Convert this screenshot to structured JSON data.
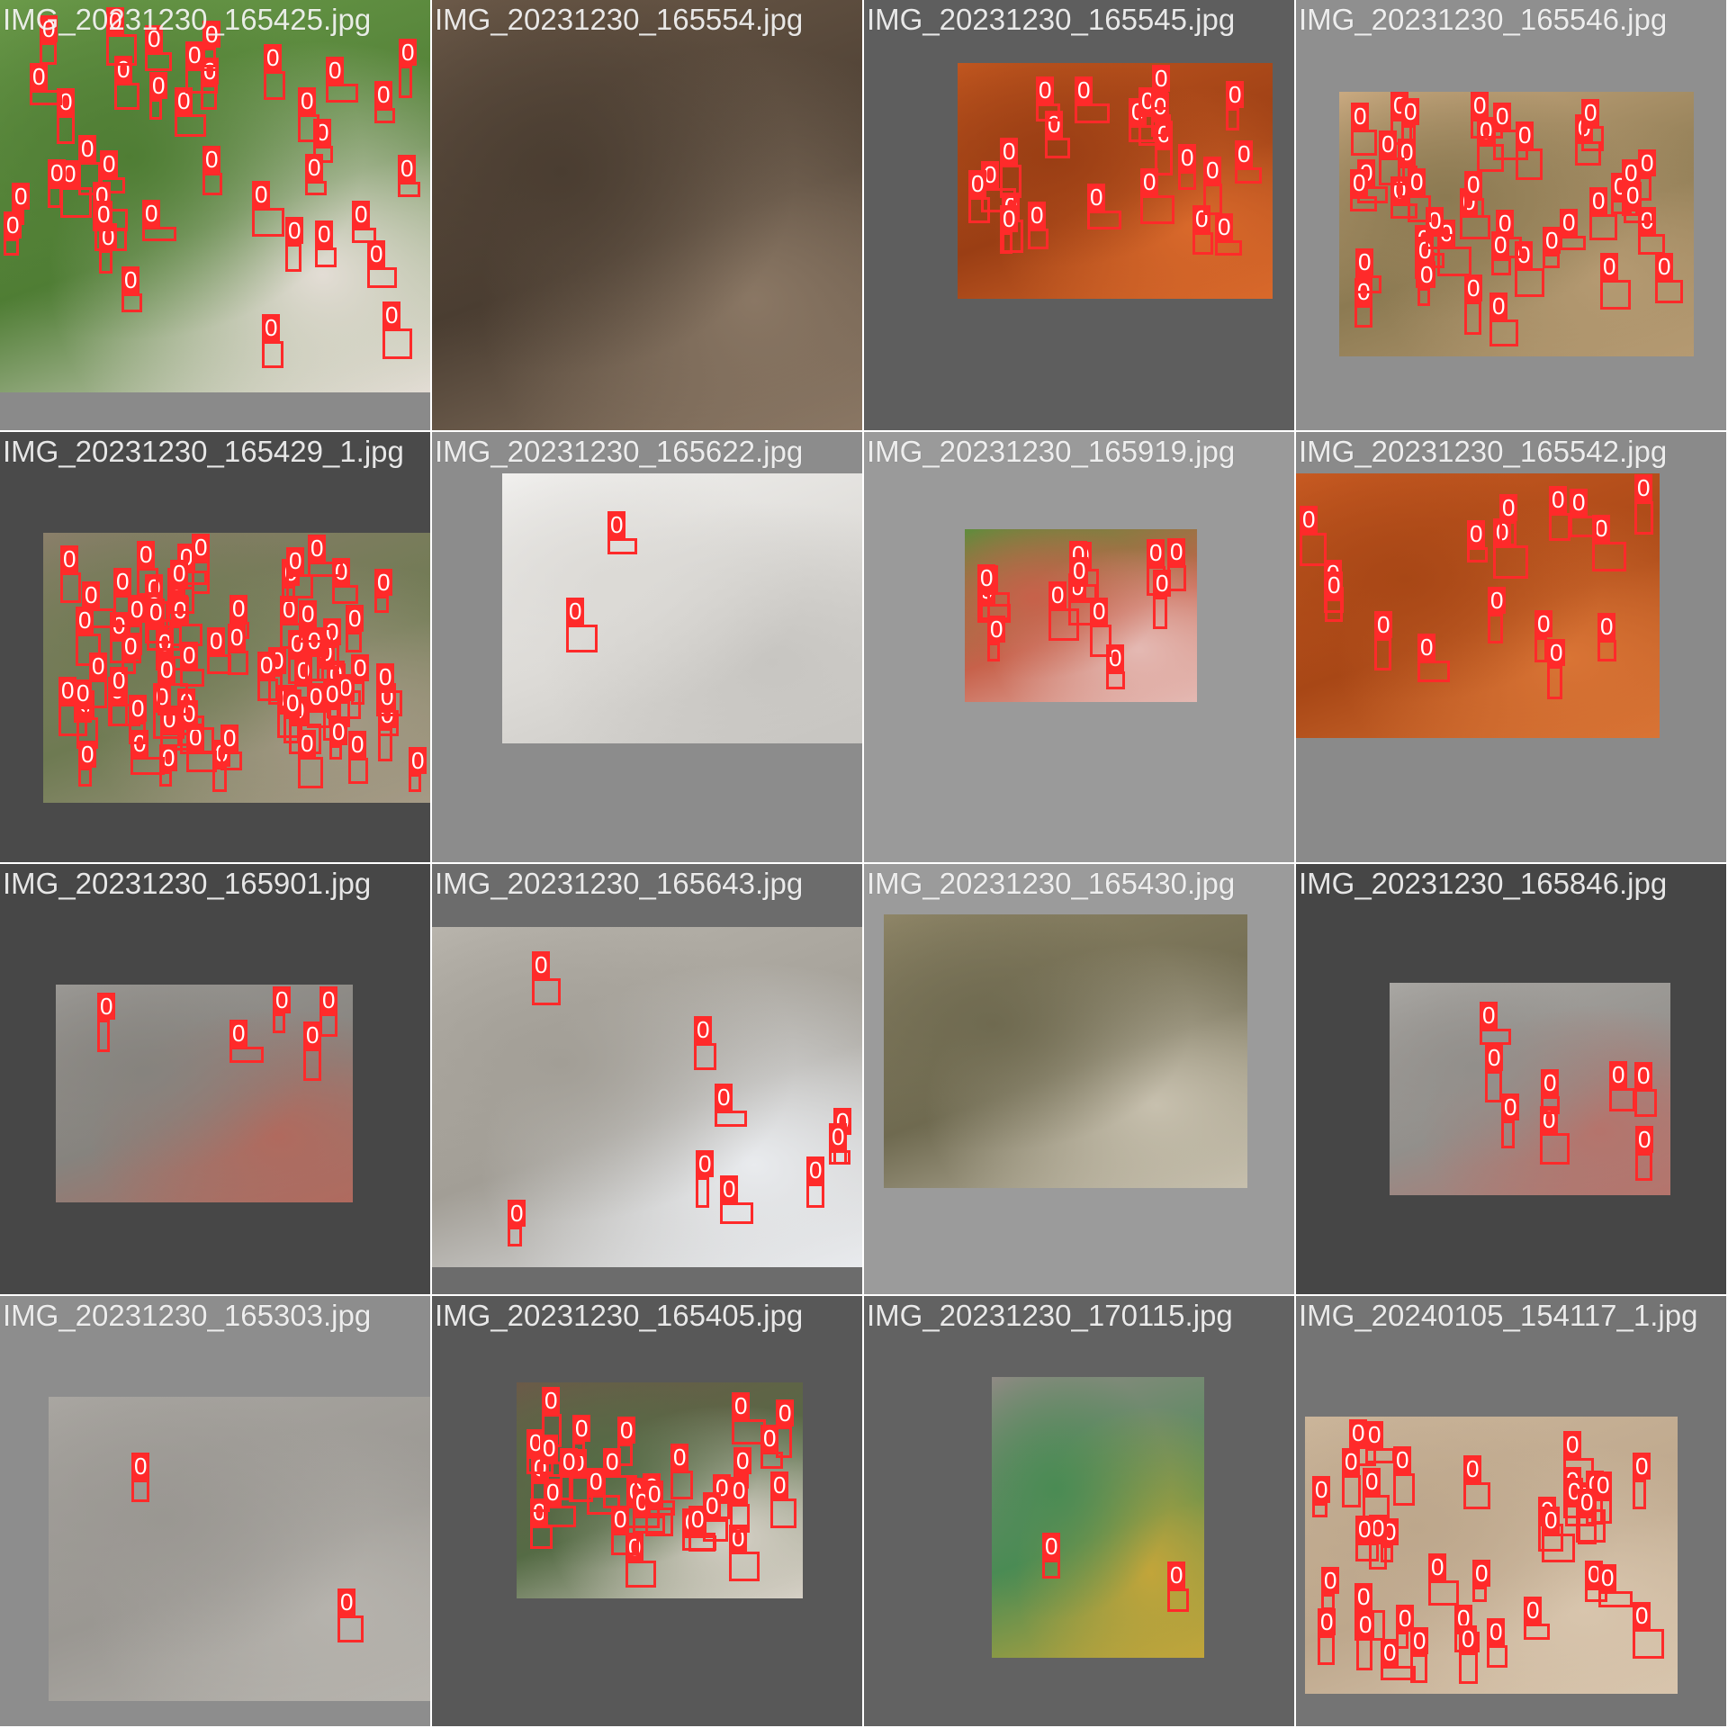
{
  "colors": {
    "box": "#ff2a2a",
    "label_text": "#ffffff"
  },
  "tiles": [
    {
      "name": "IMG_20231230_165425.jpg",
      "bg": "#8a8a8a",
      "photo_colors": [
        "#6b9a4a",
        "#4f7d34",
        "#e3ddd5"
      ],
      "labels": 38
    },
    {
      "name": "IMG_20231230_165554.jpg",
      "bg": "#7a7a7a",
      "photo_colors": [
        "#6c5a49",
        "#4a3d31",
        "#8a7764"
      ],
      "labels": 0
    },
    {
      "name": "IMG_20231230_165545.jpg",
      "bg": "#5e5e5e",
      "photo_colors": [
        "#c0561f",
        "#9a3e14",
        "#d9692b"
      ],
      "labels": 22
    },
    {
      "name": "IMG_20231230_165546.jpg",
      "bg": "#8f8f8f",
      "photo_colors": [
        "#c9a980",
        "#8c7a52",
        "#b59a72"
      ],
      "labels": 40
    },
    {
      "name": "IMG_20231230_165429_1.jpg",
      "bg": "#4a4a4a",
      "photo_colors": [
        "#8a7f6a",
        "#6e7a52",
        "#a59a86"
      ],
      "labels": 70
    },
    {
      "name": "IMG_20231230_165622.jpg",
      "bg": "#8c8c8c",
      "photo_colors": [
        "#f1f0ee",
        "#dcdad6",
        "#c7c5c1"
      ],
      "labels": 2
    },
    {
      "name": "IMG_20231230_165919.jpg",
      "bg": "#9a9a9a",
      "photo_colors": [
        "#5f8c3c",
        "#c7614a",
        "#e4b9b3"
      ],
      "labels": 14
    },
    {
      "name": "IMG_20231230_165542.jpg",
      "bg": "#8a8a8a",
      "photo_colors": [
        "#c75a22",
        "#a84716",
        "#d97435"
      ],
      "labels": 16
    },
    {
      "name": "IMG_20231230_165901.jpg",
      "bg": "#474747",
      "photo_colors": [
        "#9a9894",
        "#86837e",
        "#b06a5e"
      ],
      "labels": 5
    },
    {
      "name": "IMG_20231230_165643.jpg",
      "bg": "#6c6c6c",
      "photo_colors": [
        "#b8b4ac",
        "#a29e96",
        "#e9ebee"
      ],
      "labels": 9
    },
    {
      "name": "IMG_20231230_165430.jpg",
      "bg": "#9b9b9b",
      "photo_colors": [
        "#8e8567",
        "#6f6a50",
        "#c7c0ae"
      ],
      "labels": 0
    },
    {
      "name": "IMG_20231230_165846.jpg",
      "bg": "#464646",
      "photo_colors": [
        "#a9a7a3",
        "#928f8b",
        "#b5746c"
      ],
      "labels": 8
    },
    {
      "name": "IMG_20231230_165303.jpg",
      "bg": "#8d8d8d",
      "photo_colors": [
        "#a9a6a1",
        "#9a9792",
        "#b6b3ad"
      ],
      "labels": 2
    },
    {
      "name": "IMG_20231230_165405.jpg",
      "bg": "#585858",
      "photo_colors": [
        "#6b5a48",
        "#556b45",
        "#d6d0c6"
      ],
      "labels": 30
    },
    {
      "name": "IMG_20231230_170115.jpg",
      "bg": "#626262",
      "photo_colors": [
        "#8f8a84",
        "#4a8b54",
        "#c2a53a"
      ],
      "labels": 2
    },
    {
      "name": "IMG_20240105_154117_1.jpg",
      "bg": "#747474",
      "photo_colors": [
        "#cbb59a",
        "#bda78c",
        "#d8c5ad"
      ],
      "labels": 36
    }
  ],
  "detection_label": "0"
}
